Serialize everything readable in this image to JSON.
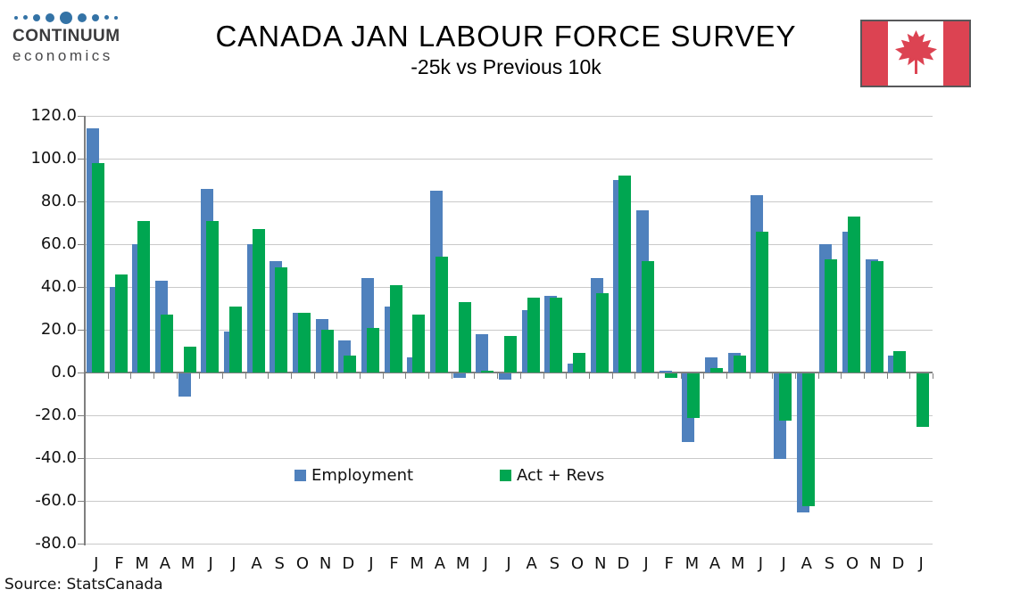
{
  "logo": {
    "line1": "CONTINUUM",
    "line2": "economics",
    "dot_color": "#3473a6",
    "dot_sizes": [
      4,
      5,
      8,
      10,
      14,
      10,
      8,
      5,
      4
    ]
  },
  "flag": {
    "name": "canada-flag",
    "red": "#dc4352",
    "white": "#ffffff",
    "border": "#58585a"
  },
  "chart_data": {
    "type": "bar",
    "title": "CANADA JAN LABOUR FORCE SURVEY",
    "subtitle": "-25k vs Previous 10k",
    "categories": [
      "J",
      "F",
      "M",
      "A",
      "M",
      "J",
      "J",
      "A",
      "S",
      "O",
      "N",
      "D",
      "J",
      "F",
      "M",
      "A",
      "M",
      "J",
      "J",
      "A",
      "S",
      "O",
      "N",
      "D",
      "J",
      "F",
      "M",
      "A",
      "M",
      "J",
      "J",
      "A",
      "S",
      "O",
      "N",
      "D",
      "J"
    ],
    "series": [
      {
        "name": "Employment",
        "color": "#4f81bd",
        "values": [
          114,
          40,
          60,
          43,
          -11,
          86,
          19,
          60,
          52,
          28,
          25,
          15,
          44,
          31,
          7,
          85,
          -2,
          18,
          -3,
          29,
          36,
          4,
          44,
          90,
          76,
          1,
          -32,
          7,
          9,
          83,
          -40,
          -65,
          60,
          66,
          53,
          8,
          null
        ]
      },
      {
        "name": "Act + Revs",
        "color": "#00a651",
        "values": [
          98,
          46,
          71,
          27,
          12,
          71,
          31,
          67,
          49,
          28,
          20,
          8,
          21,
          41,
          27,
          54,
          33,
          1,
          17,
          35,
          35,
          9,
          37,
          92,
          52,
          -2,
          -21,
          2,
          8,
          66,
          -22,
          -62,
          53,
          73,
          52,
          10,
          -25
        ]
      }
    ],
    "ylim": [
      -80,
      120
    ],
    "ytick_step": 20,
    "ytick_decimals": 1,
    "grid": true,
    "legend_position": "inside-bottom-center"
  },
  "source": "Source: StatsCanada"
}
